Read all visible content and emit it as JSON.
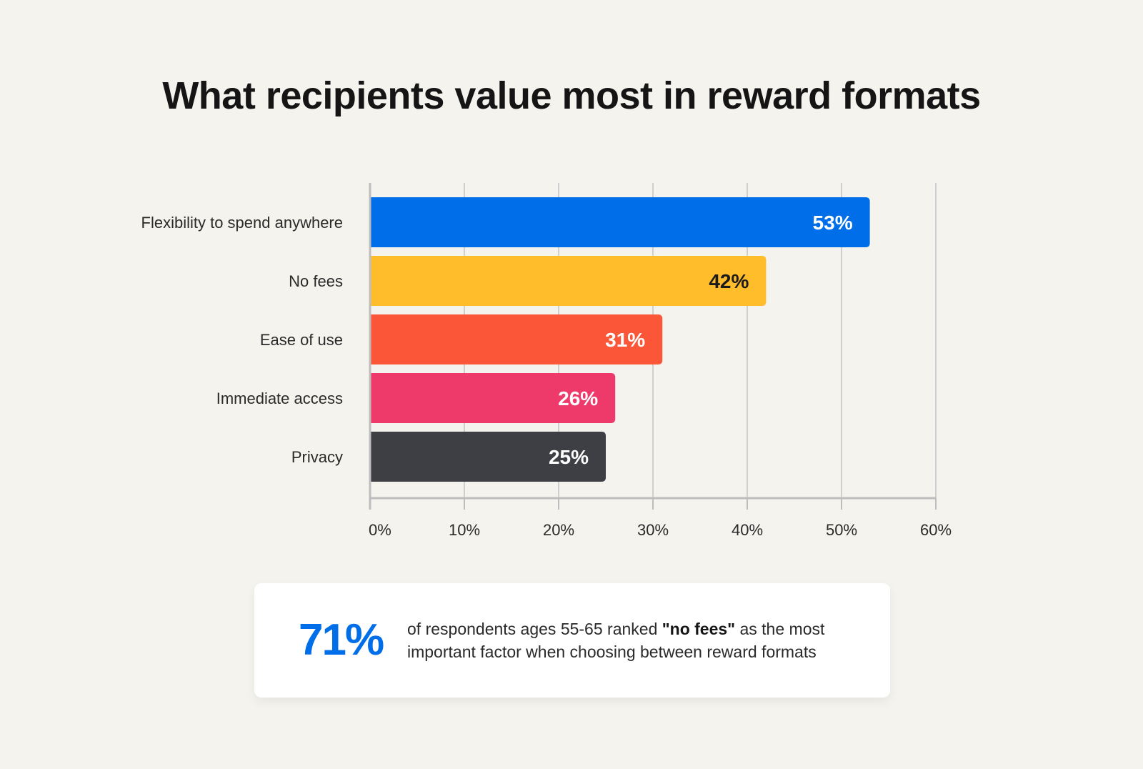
{
  "title": "What recipients value most in reward formats",
  "colors": {
    "background": "#f5f3ee",
    "grid": "#cfcfcf",
    "axis": "#bdbdbd",
    "accent_blue": "#006ee9"
  },
  "chart_data": {
    "type": "bar",
    "orientation": "horizontal",
    "title": "What recipients value most in reward formats",
    "categories": [
      "Flexibility to spend anywhere",
      "No fees",
      "Ease of use",
      "Immediate access",
      "Privacy"
    ],
    "values": [
      53,
      42,
      31,
      26,
      25
    ],
    "value_labels": [
      "53%",
      "42%",
      "31%",
      "26%",
      "25%"
    ],
    "bar_colors": [
      "#006ee9",
      "#ffbc2b",
      "#fb5638",
      "#ee3a6a",
      "#3e3f44"
    ],
    "label_colors": [
      "#ffffff",
      "#1b1b1b",
      "#ffffff",
      "#ffffff",
      "#ffffff"
    ],
    "xlim": [
      0,
      60
    ],
    "xticks": [
      0,
      10,
      20,
      30,
      40,
      50,
      60
    ],
    "xtick_labels": [
      "0%",
      "10%",
      "20%",
      "30%",
      "40%",
      "50%",
      "60%"
    ],
    "xlabel": "",
    "ylabel": "",
    "grid": true,
    "legend": "none"
  },
  "stat": {
    "number": "71%",
    "text_before": "of respondents ages 55-65 ranked ",
    "text_bold": "\"no fees\"",
    "text_after": " as the most important factor when choosing between reward formats"
  }
}
